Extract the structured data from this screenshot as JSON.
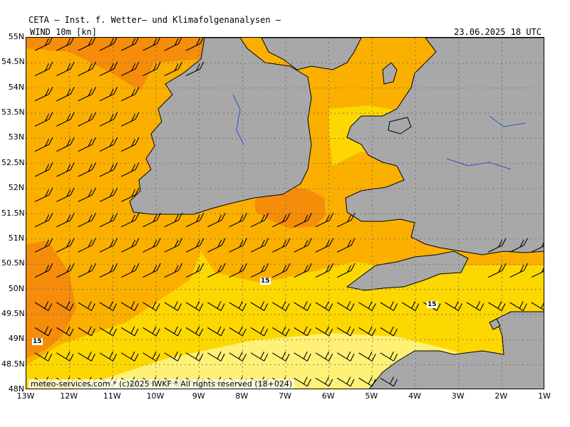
{
  "header": {
    "title": "CETA — Inst. f. Wetter— und Klimafolgenanalysen —",
    "parameter": "WIND 10m [kn]",
    "datetime": "23.06.2025 18 UTC"
  },
  "footer": {
    "copyright": "meteo-services.com * (c)2025 IWKF * All rights reserved (18+024)"
  },
  "axes": {
    "lat_ticks": [
      "55N",
      "54.5N",
      "54N",
      "53.5N",
      "53N",
      "52.5N",
      "52N",
      "51.5N",
      "51N",
      "50.5N",
      "50N",
      "49.5N",
      "49N",
      "48.5N",
      "48N"
    ],
    "lon_ticks": [
      "13W",
      "12W",
      "11W",
      "10W",
      "9W",
      "8W",
      "7W",
      "6W",
      "5W",
      "4W",
      "3W",
      "2W",
      "1W"
    ]
  },
  "contour_labels": [
    "15",
    "15",
    "15"
  ],
  "colors": {
    "land": "#a8a8a8",
    "wind_10_15": "#fff176",
    "wind_15_20": "#fdd800",
    "wind_20_25": "#fbb000",
    "wind_25_30": "#f58c0a",
    "no_data": "#ffffff"
  }
}
